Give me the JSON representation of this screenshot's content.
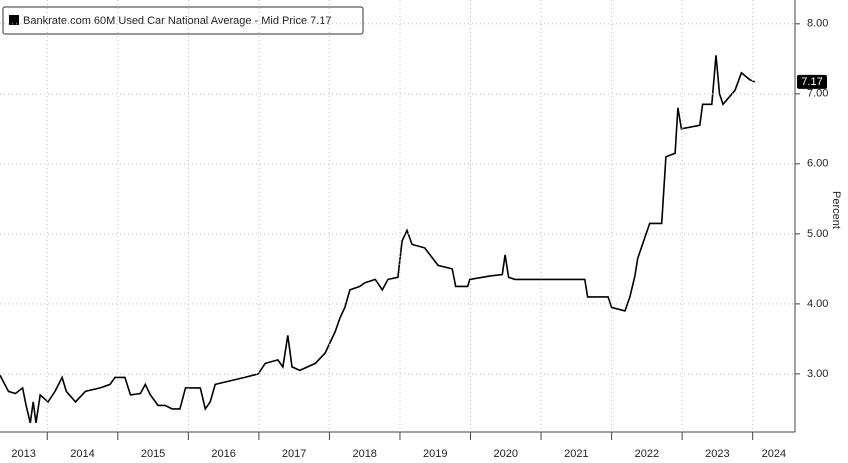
{
  "chart_data": {
    "type": "line",
    "y_label": "Percent",
    "x": [
      2013.33,
      2013.45,
      2013.55,
      2013.65,
      2013.7,
      2013.76,
      2013.8,
      2013.84,
      2013.9,
      2014.01,
      2014.11,
      2014.21,
      2014.27,
      2014.4,
      2014.54,
      2014.75,
      2014.89,
      2014.96,
      2015.1,
      2015.18,
      2015.32,
      2015.39,
      2015.46,
      2015.57,
      2015.67,
      2015.77,
      2015.88,
      2015.96,
      2016.17,
      2016.24,
      2016.31,
      2016.38,
      2016.59,
      2016.8,
      2016.99,
      2017.09,
      2017.27,
      2017.34,
      2017.41,
      2017.47,
      2017.58,
      2017.8,
      2017.94,
      2018.01,
      2018.08,
      2018.15,
      2018.22,
      2018.29,
      2018.43,
      2018.5,
      2018.65,
      2018.75,
      2018.83,
      2018.97,
      2019.03,
      2019.1,
      2019.17,
      2019.35,
      2019.54,
      2019.74,
      2019.79,
      2019.96,
      2019.99,
      2020.28,
      2020.45,
      2020.49,
      2020.54,
      2020.63,
      2021.62,
      2021.66,
      2021.95,
      2022.0,
      2022.19,
      2022.26,
      2022.33,
      2022.37,
      2022.54,
      2022.71,
      2022.77,
      2022.9,
      2022.94,
      2022.99,
      2023.25,
      2023.29,
      2023.42,
      2023.48,
      2023.53,
      2023.58,
      2023.75,
      2023.84,
      2023.96,
      2024.03
    ],
    "series": [
      {
        "name": "Bankrate.com 60M Used Car National Average - Mid Price 7.17",
        "color": "#000000",
        "values": [
          2.98,
          2.75,
          2.72,
          2.8,
          2.55,
          2.3,
          2.6,
          2.3,
          2.7,
          2.6,
          2.75,
          2.95,
          2.75,
          2.6,
          2.75,
          2.8,
          2.85,
          2.95,
          2.95,
          2.7,
          2.72,
          2.85,
          2.7,
          2.55,
          2.55,
          2.5,
          2.5,
          2.8,
          2.8,
          2.5,
          2.6,
          2.85,
          2.9,
          2.95,
          3.0,
          3.15,
          3.2,
          3.1,
          3.55,
          3.1,
          3.05,
          3.15,
          3.3,
          3.45,
          3.6,
          3.8,
          3.95,
          4.2,
          4.25,
          4.3,
          4.35,
          4.2,
          4.35,
          4.38,
          4.9,
          5.05,
          4.85,
          4.8,
          4.55,
          4.5,
          4.25,
          4.25,
          4.35,
          4.4,
          4.42,
          4.7,
          4.38,
          4.35,
          4.35,
          4.1,
          4.1,
          3.95,
          3.9,
          4.1,
          4.4,
          4.65,
          5.15,
          5.15,
          6.1,
          6.15,
          6.8,
          6.5,
          6.55,
          6.85,
          6.85,
          7.55,
          7.0,
          6.85,
          7.05,
          7.3,
          7.2,
          7.17
        ]
      }
    ],
    "last_value": 7.17,
    "xlim": [
      2013.33,
      2024.6
    ],
    "xticks": [
      2013,
      2014,
      2015,
      2016,
      2017,
      2018,
      2019,
      2020,
      2021,
      2022,
      2023,
      2024
    ],
    "ylim": [
      2.17,
      8.34
    ],
    "yticks": [
      {
        "value": 3,
        "label": "3.00"
      },
      {
        "value": 4,
        "label": "4.00"
      },
      {
        "value": 5,
        "label": "5.00"
      },
      {
        "value": 6,
        "label": "6.00"
      },
      {
        "value": 7,
        "label": "7.00"
      },
      {
        "value": 8,
        "label": "8.00"
      }
    ],
    "grid": true
  }
}
